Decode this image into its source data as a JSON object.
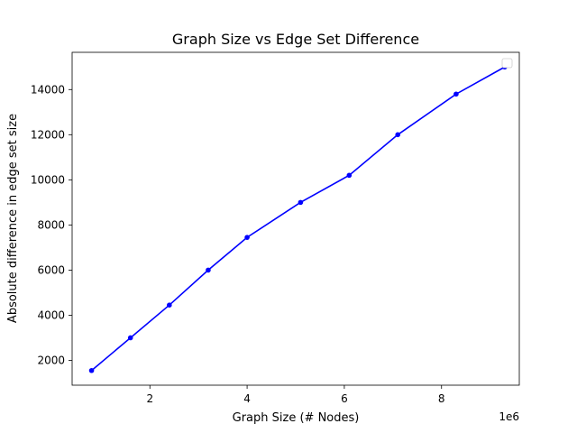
{
  "chart_data": {
    "type": "line",
    "title": "Graph Size vs Edge Set Difference",
    "xlabel": "Graph Size (# Nodes)",
    "ylabel": "Absolute difference in edge set size",
    "x_offset_label": "1e6",
    "xlim": [
      0.4,
      9.6
    ],
    "ylim": [
      900,
      15650
    ],
    "x_ticks": [
      2,
      4,
      6,
      8
    ],
    "x_tick_labels": [
      "2",
      "4",
      "6",
      "8"
    ],
    "y_ticks": [
      2000,
      4000,
      6000,
      8000,
      10000,
      12000,
      14000
    ],
    "y_tick_labels": [
      "2000",
      "4000",
      "6000",
      "8000",
      "10000",
      "12000",
      "14000"
    ],
    "grid": false,
    "legend": "top-right (empty)",
    "series": [
      {
        "color": "#0000ff",
        "marker": "circle",
        "x": [
          0.8,
          1.6,
          2.4,
          3.2,
          4.0,
          5.1,
          6.1,
          7.1,
          8.3,
          9.3
        ],
        "y": [
          1550,
          3000,
          4450,
          6000,
          7450,
          9000,
          10200,
          12000,
          13800,
          15000
        ]
      }
    ]
  }
}
